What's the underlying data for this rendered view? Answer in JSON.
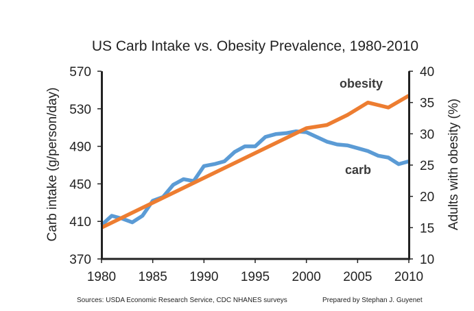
{
  "chart_data": {
    "type": "line",
    "title": "US Carb Intake vs. Obesity Prevalence, 1980-2010",
    "xlabel": "",
    "ylabel": "Carb intake (g/person/day)",
    "y2label": "Adults with obesity (%)",
    "xlim": [
      1980,
      2010
    ],
    "ylim": [
      370,
      570
    ],
    "y2lim": [
      10,
      40
    ],
    "x_ticks": [
      "1980",
      "1985",
      "1990",
      "1995",
      "2000",
      "2005",
      "2010"
    ],
    "y_ticks": [
      "370",
      "410",
      "450",
      "490",
      "530",
      "570"
    ],
    "y2_ticks": [
      "10",
      "15",
      "20",
      "25",
      "30",
      "35",
      "40"
    ],
    "series": [
      {
        "name": "carb",
        "axis": "left",
        "color": "#5b9bd5",
        "x": [
          1980,
          1981,
          1982,
          1983,
          1984,
          1985,
          1986,
          1987,
          1988,
          1989,
          1990,
          1991,
          1992,
          1993,
          1994,
          1995,
          1996,
          1997,
          1998,
          1999,
          2000,
          2001,
          2002,
          2003,
          2004,
          2005,
          2006,
          2007,
          2008,
          2009,
          2010
        ],
        "values": [
          406,
          416,
          413,
          409,
          416,
          432,
          436,
          449,
          455,
          453,
          469,
          471,
          474,
          484,
          490,
          490,
          500,
          503,
          504,
          506,
          505,
          500,
          495,
          492,
          491,
          488,
          485,
          480,
          478,
          471,
          474
        ]
      },
      {
        "name": "obesity",
        "axis": "right",
        "color": "#ed7d31",
        "x": [
          1980,
          2000,
          2002,
          2004,
          2006,
          2008,
          2010
        ],
        "values": [
          15.0,
          30.9,
          31.4,
          33.0,
          35.0,
          34.2,
          36.1
        ]
      }
    ]
  },
  "labels": {
    "carb": "carb",
    "obesity": "obesity"
  },
  "footer": {
    "sources": "Sources: USDA Economic Research Service, CDC NHANES surveys",
    "prepared_by": "Prepared by Stephan J. Guyenet"
  }
}
